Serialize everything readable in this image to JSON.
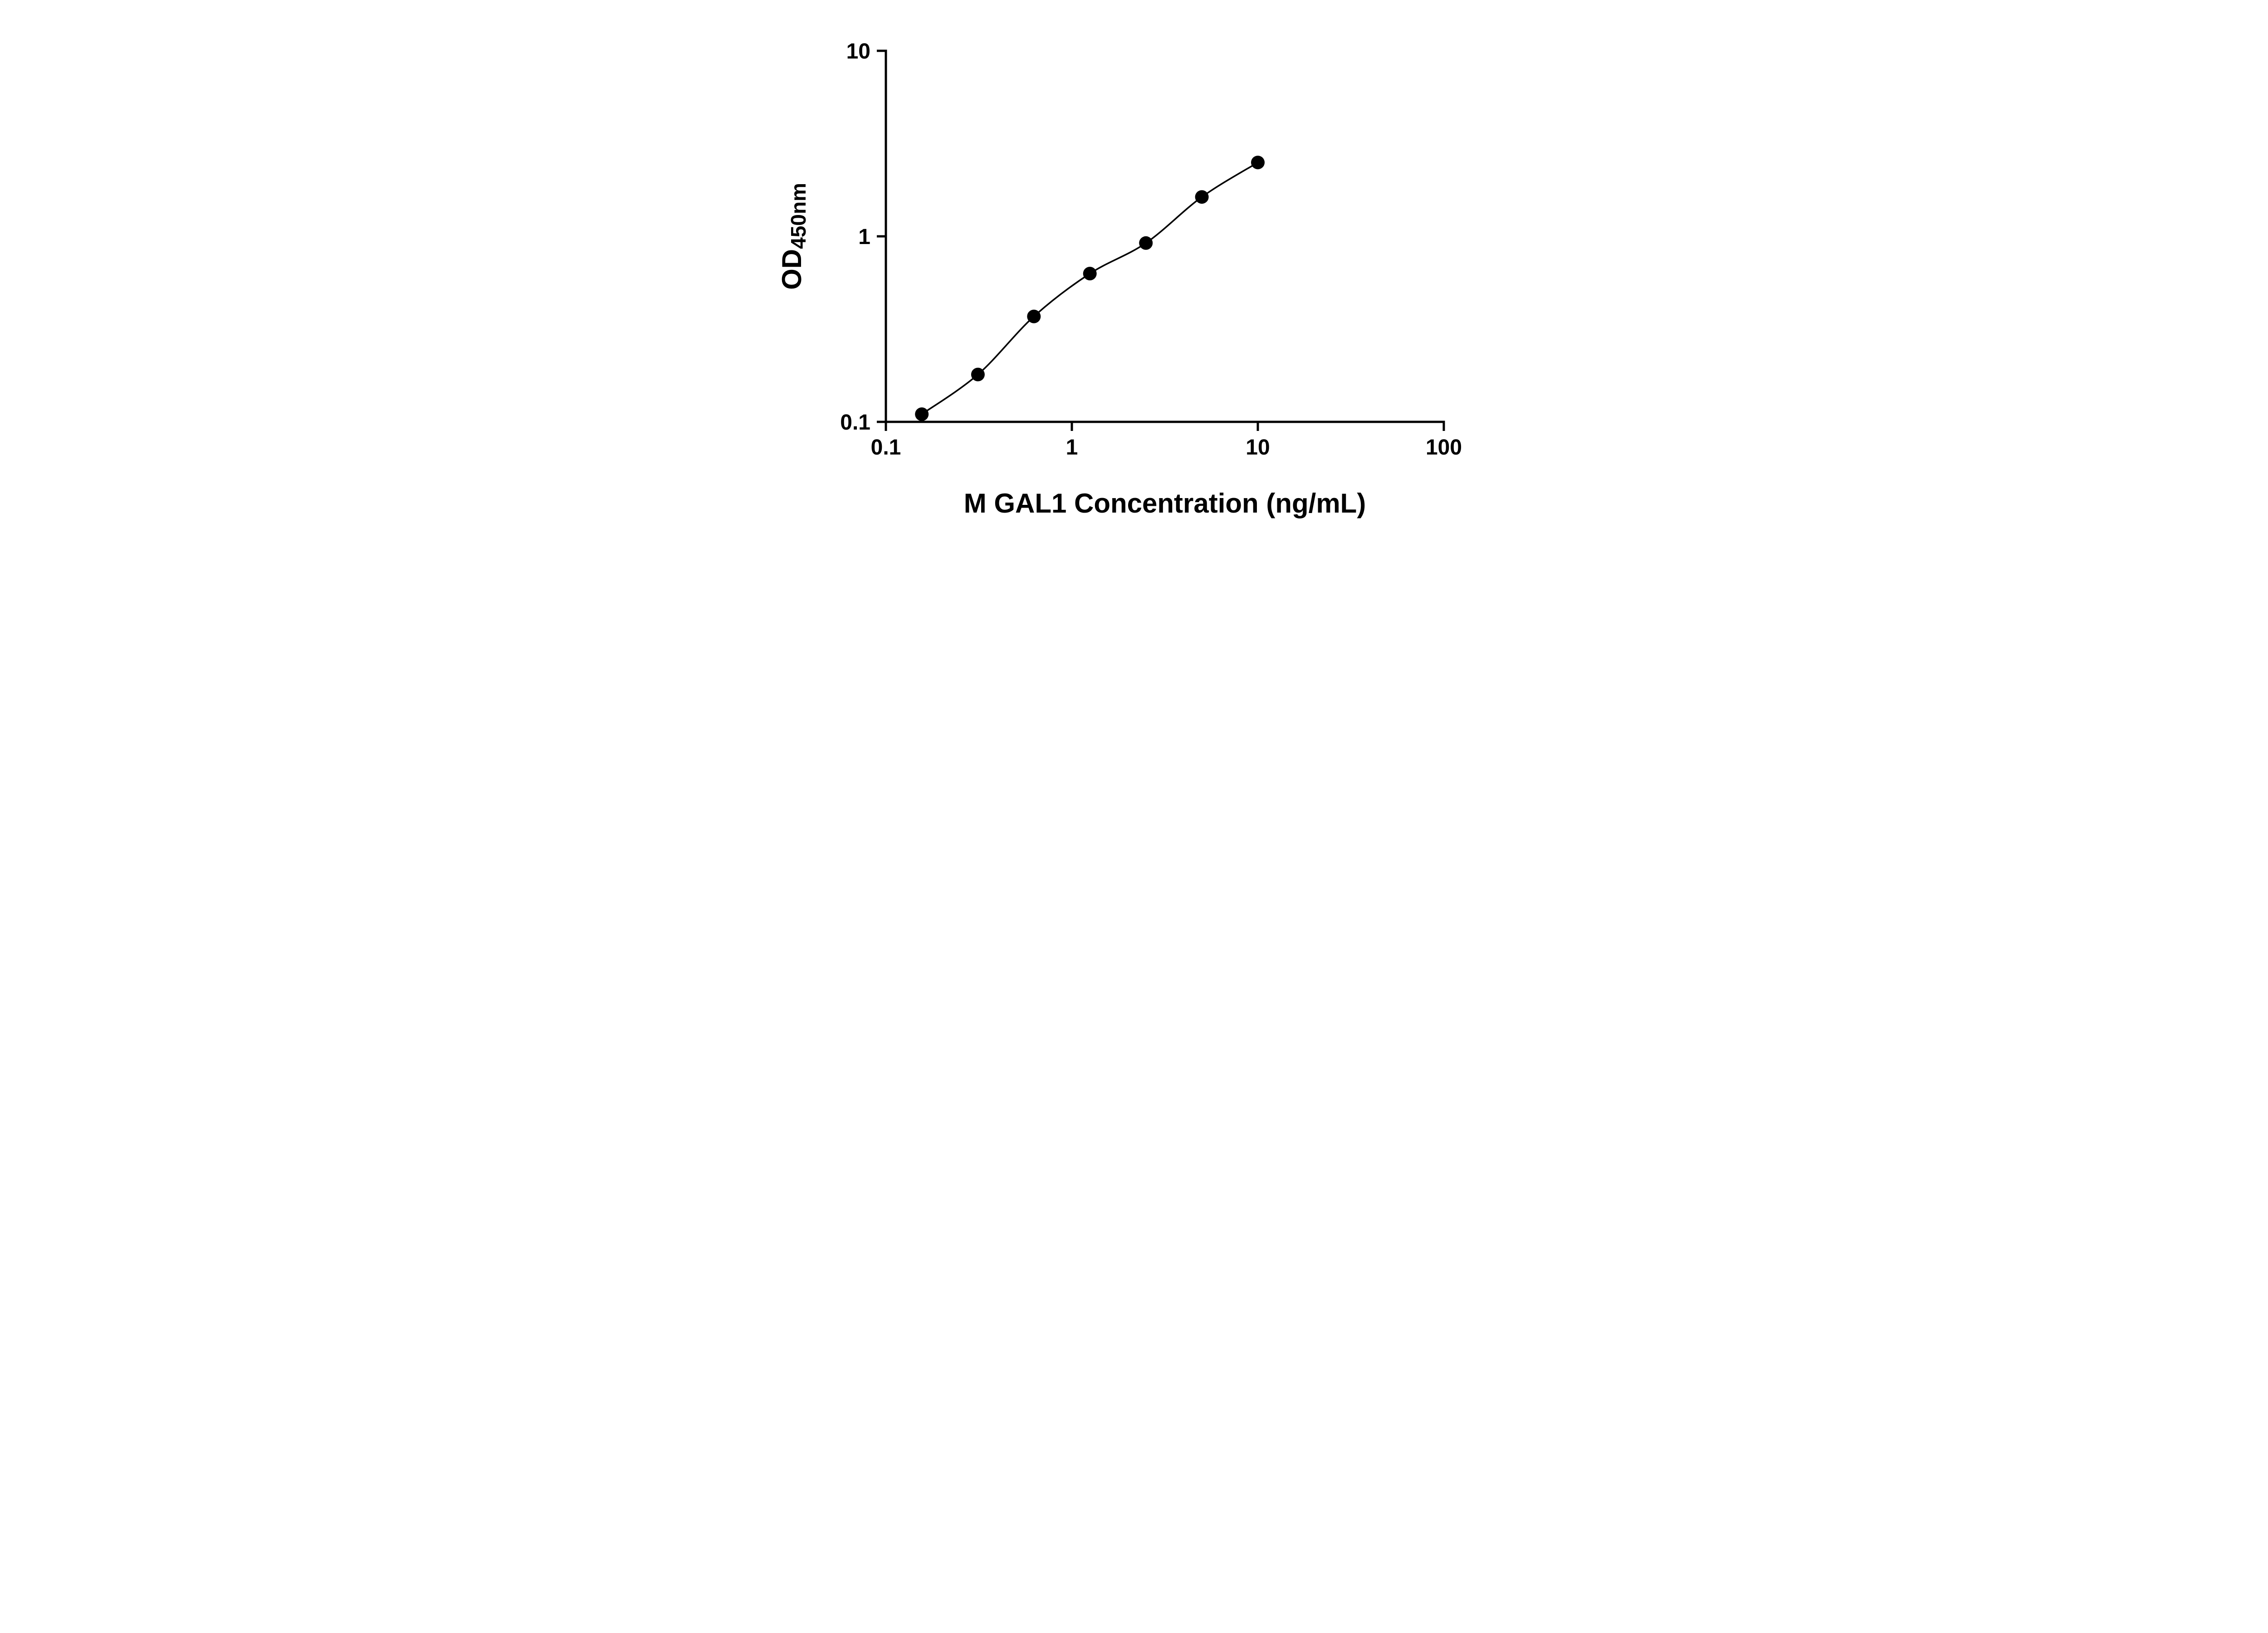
{
  "chart_data": {
    "type": "scatter",
    "title": "",
    "xlabel": "M GAL1 Concentration (ng/mL)",
    "ylabel_main": "OD",
    "ylabel_sub": "450nm",
    "x_scale": "log",
    "y_scale": "log",
    "xlim": [
      0.1,
      100
    ],
    "ylim": [
      0.1,
      10
    ],
    "grid": false,
    "legend": false,
    "x_ticks": [
      {
        "value": 0.1,
        "label": "0.1"
      },
      {
        "value": 1,
        "label": "1"
      },
      {
        "value": 10,
        "label": "10"
      },
      {
        "value": 100,
        "label": "100"
      }
    ],
    "y_ticks": [
      {
        "value": 0.1,
        "label": "0.1"
      },
      {
        "value": 1,
        "label": "1"
      },
      {
        "value": 10,
        "label": "10"
      }
    ],
    "points": [
      {
        "x": 0.156,
        "y": 0.11
      },
      {
        "x": 0.3125,
        "y": 0.18
      },
      {
        "x": 0.625,
        "y": 0.37
      },
      {
        "x": 1.25,
        "y": 0.63
      },
      {
        "x": 2.5,
        "y": 0.92
      },
      {
        "x": 5,
        "y": 1.63
      },
      {
        "x": 10,
        "y": 2.5
      }
    ],
    "fit_line": true,
    "colors": {
      "marker": "#000000",
      "line": "#000000",
      "axis": "#000000",
      "background": "#ffffff"
    }
  }
}
